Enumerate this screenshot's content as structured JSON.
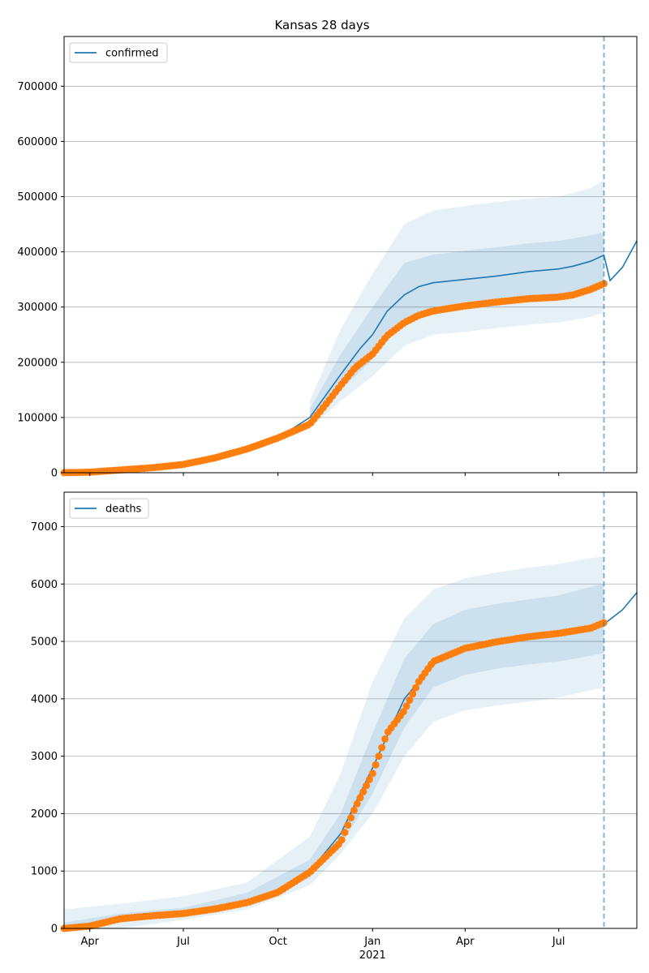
{
  "chart_data": [
    {
      "type": "line",
      "title": "Kansas 28 days",
      "series_name": "confirmed",
      "ylim": [
        0,
        790000
      ],
      "yticks": [
        0,
        100000,
        200000,
        300000,
        400000,
        500000,
        600000,
        700000
      ],
      "grid": "horizontal",
      "legend": "upper-left",
      "forecast_start": "2021-08-14",
      "forecast_line": [
        [
          "2020-03-07",
          0
        ],
        [
          "2020-06-01",
          9000
        ],
        [
          "2020-07-01",
          15000
        ],
        [
          "2020-08-01",
          27000
        ],
        [
          "2020-09-01",
          43000
        ],
        [
          "2020-10-01",
          63000
        ],
        [
          "2020-11-01",
          100000
        ],
        [
          "2020-12-01",
          178000
        ],
        [
          "2020-12-20",
          225000
        ],
        [
          "2021-01-01",
          250000
        ],
        [
          "2021-01-15",
          292000
        ],
        [
          "2021-02-01",
          322000
        ],
        [
          "2021-02-15",
          337000
        ],
        [
          "2021-03-01",
          344000
        ],
        [
          "2021-04-01",
          350000
        ],
        [
          "2021-05-01",
          356000
        ],
        [
          "2021-06-01",
          364000
        ],
        [
          "2021-07-01",
          369000
        ],
        [
          "2021-07-15",
          374000
        ],
        [
          "2021-08-01",
          383000
        ],
        [
          "2021-08-14",
          394000
        ],
        [
          "2021-08-20",
          348000
        ],
        [
          "2021-09-01",
          372000
        ],
        [
          "2021-09-15",
          420000
        ]
      ],
      "observed": [
        [
          "2020-03-07",
          0
        ],
        [
          "2020-04-01",
          1000
        ],
        [
          "2020-05-01",
          5000
        ],
        [
          "2020-06-01",
          9000
        ],
        [
          "2020-07-01",
          15000
        ],
        [
          "2020-08-01",
          27000
        ],
        [
          "2020-09-01",
          43000
        ],
        [
          "2020-10-01",
          63000
        ],
        [
          "2020-11-01",
          88000
        ],
        [
          "2020-11-15",
          120000
        ],
        [
          "2020-12-01",
          158000
        ],
        [
          "2020-12-15",
          190000
        ],
        [
          "2021-01-01",
          215000
        ],
        [
          "2021-01-15",
          248000
        ],
        [
          "2021-02-01",
          272000
        ],
        [
          "2021-02-15",
          285000
        ],
        [
          "2021-03-01",
          293000
        ],
        [
          "2021-04-01",
          302000
        ],
        [
          "2021-05-01",
          309000
        ],
        [
          "2021-06-01",
          315000
        ],
        [
          "2021-07-01",
          318000
        ],
        [
          "2021-07-15",
          322000
        ],
        [
          "2021-08-01",
          332000
        ],
        [
          "2021-08-16",
          344000
        ]
      ],
      "outer_band": [
        [
          "2020-11-01",
          80000,
          130000
        ],
        [
          "2020-12-01",
          130000,
          260000
        ],
        [
          "2021-01-01",
          175000,
          360000
        ],
        [
          "2021-02-01",
          230000,
          450000
        ],
        [
          "2021-03-01",
          250000,
          475000
        ],
        [
          "2021-04-01",
          255000,
          483000
        ],
        [
          "2021-05-01",
          262000,
          490000
        ],
        [
          "2021-06-01",
          268000,
          496000
        ],
        [
          "2021-07-01",
          272000,
          500000
        ],
        [
          "2021-08-01",
          282000,
          515000
        ],
        [
          "2021-08-14",
          290000,
          530000
        ]
      ],
      "inner_band": [
        [
          "2020-11-01",
          88000,
          115000
        ],
        [
          "2020-12-01",
          150000,
          215000
        ],
        [
          "2021-01-01",
          205000,
          300000
        ],
        [
          "2021-02-01",
          275000,
          380000
        ],
        [
          "2021-03-01",
          292000,
          395000
        ],
        [
          "2021-04-01",
          298000,
          402000
        ],
        [
          "2021-05-01",
          304000,
          408000
        ],
        [
          "2021-06-01",
          310000,
          415000
        ],
        [
          "2021-07-01",
          315000,
          420000
        ],
        [
          "2021-08-01",
          325000,
          430000
        ],
        [
          "2021-08-14",
          335000,
          435000
        ]
      ]
    },
    {
      "type": "line",
      "series_name": "deaths",
      "ylim": [
        0,
        7600
      ],
      "yticks": [
        0,
        1000,
        2000,
        3000,
        4000,
        5000,
        6000,
        7000
      ],
      "grid": "horizontal",
      "legend": "upper-left",
      "forecast_start": "2021-08-14",
      "forecast_line": [
        [
          "2020-03-07",
          0
        ],
        [
          "2020-04-01",
          50
        ],
        [
          "2020-05-01",
          180
        ],
        [
          "2020-06-01",
          230
        ],
        [
          "2020-07-01",
          270
        ],
        [
          "2020-08-01",
          350
        ],
        [
          "2020-09-01",
          460
        ],
        [
          "2020-10-01",
          640
        ],
        [
          "2020-11-01",
          1000
        ],
        [
          "2020-12-01",
          1650
        ],
        [
          "2021-01-01",
          2800
        ],
        [
          "2021-02-01",
          4000
        ],
        [
          "2021-03-01",
          4600
        ],
        [
          "2021-04-01",
          4880
        ],
        [
          "2021-05-01",
          4990
        ],
        [
          "2021-06-01",
          5070
        ],
        [
          "2021-07-01",
          5130
        ],
        [
          "2021-08-01",
          5220
        ],
        [
          "2021-08-14",
          5300
        ],
        [
          "2021-09-01",
          5550
        ],
        [
          "2021-09-15",
          5850
        ]
      ],
      "observed": [
        [
          "2020-03-07",
          0
        ],
        [
          "2020-04-01",
          40
        ],
        [
          "2020-05-01",
          170
        ],
        [
          "2020-06-01",
          220
        ],
        [
          "2020-07-01",
          260
        ],
        [
          "2020-08-01",
          340
        ],
        [
          "2020-09-01",
          450
        ],
        [
          "2020-10-01",
          630
        ],
        [
          "2020-11-01",
          980
        ],
        [
          "2020-12-01",
          1500
        ],
        [
          "2020-12-15",
          2100
        ],
        [
          "2021-01-01",
          2700
        ],
        [
          "2021-01-15",
          3400
        ],
        [
          "2021-02-01",
          3800
        ],
        [
          "2021-02-15",
          4300
        ],
        [
          "2021-03-01",
          4650
        ],
        [
          "2021-04-01",
          4880
        ],
        [
          "2021-05-01",
          4990
        ],
        [
          "2021-06-01",
          5080
        ],
        [
          "2021-07-01",
          5140
        ],
        [
          "2021-08-01",
          5230
        ],
        [
          "2021-08-16",
          5340
        ]
      ],
      "outer_band": [
        [
          "2020-03-07",
          0,
          330
        ],
        [
          "2020-05-01",
          0,
          430
        ],
        [
          "2020-07-01",
          150,
          560
        ],
        [
          "2020-09-01",
          330,
          800
        ],
        [
          "2020-11-01",
          750,
          1600
        ],
        [
          "2020-12-01",
          1300,
          2700
        ],
        [
          "2021-01-01",
          2000,
          4300
        ],
        [
          "2021-02-01",
          3000,
          5400
        ],
        [
          "2021-03-01",
          3600,
          5900
        ],
        [
          "2021-04-01",
          3800,
          6100
        ],
        [
          "2021-05-01",
          3880,
          6200
        ],
        [
          "2021-06-01",
          3950,
          6280
        ],
        [
          "2021-07-01",
          4020,
          6350
        ],
        [
          "2021-08-01",
          4150,
          6450
        ],
        [
          "2021-08-14",
          4200,
          6480
        ]
      ],
      "inner_band": [
        [
          "2020-03-07",
          0,
          100
        ],
        [
          "2020-05-01",
          100,
          260
        ],
        [
          "2020-07-01",
          220,
          360
        ],
        [
          "2020-09-01",
          400,
          620
        ],
        [
          "2020-11-01",
          880,
          1200
        ],
        [
          "2020-12-01",
          1450,
          2000
        ],
        [
          "2021-01-01",
          2350,
          3400
        ],
        [
          "2021-02-01",
          3500,
          4700
        ],
        [
          "2021-03-01",
          4200,
          5300
        ],
        [
          "2021-04-01",
          4420,
          5550
        ],
        [
          "2021-05-01",
          4520,
          5650
        ],
        [
          "2021-06-01",
          4600,
          5730
        ],
        [
          "2021-07-01",
          4650,
          5800
        ],
        [
          "2021-08-01",
          4750,
          5950
        ],
        [
          "2021-08-14",
          4800,
          6000
        ]
      ]
    }
  ],
  "x_axis": {
    "xlim": [
      "2020-03-07",
      "2021-09-15"
    ],
    "tick_labels": [
      "Apr",
      "Jul",
      "Oct",
      "Jan",
      "Apr",
      "Jul"
    ],
    "tick_dates": [
      "2020-04-01",
      "2020-07-01",
      "2020-10-01",
      "2021-01-01",
      "2021-04-01",
      "2021-07-01"
    ],
    "year_label": "2021"
  },
  "colors": {
    "line": "#1f77b4",
    "observed": "#ff7f0e",
    "band": "#1f77b4",
    "grid": "#b0b0b0"
  }
}
